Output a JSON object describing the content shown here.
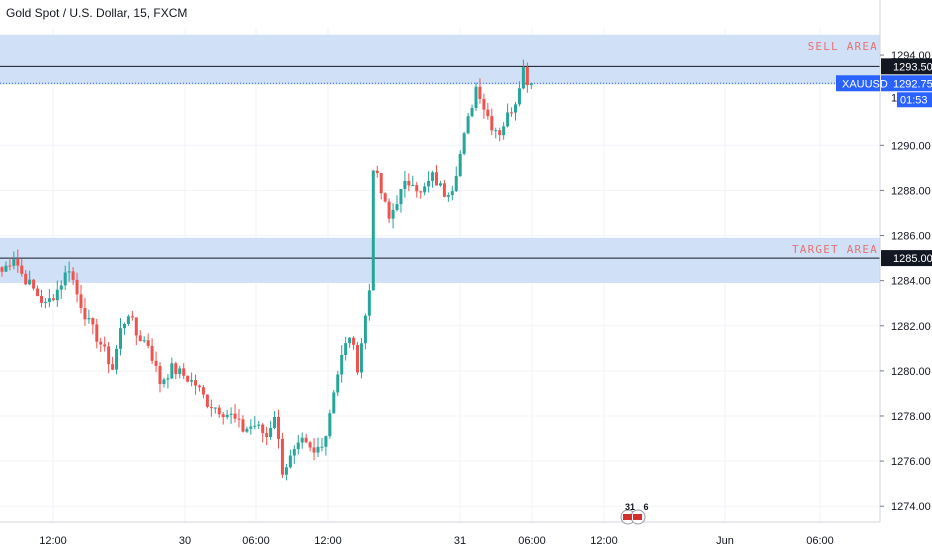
{
  "header": {
    "symbol_title": "Gold Spot / U.S. Dollar, 15, FXCM"
  },
  "colors": {
    "up": "#26a69a",
    "down": "#ef5350",
    "zone_fill": "#cfe0f7",
    "zone_text": "#e57373",
    "axis_text": "#131722",
    "grid": "#f0f3fa",
    "price_badge": "#2962ff",
    "line_badge": "#131722"
  },
  "chart_data": {
    "type": "candlestick",
    "instrument": "XAUUSD",
    "timeframe": "15",
    "ylim": [
      1273.3,
      1295.2
    ],
    "y_ticks": [
      "1274.00",
      "1276.00",
      "1278.00",
      "1280.00",
      "1282.00",
      "1284.00",
      "1286.00",
      "1288.00",
      "1290.00",
      "1294.00"
    ],
    "x_ticks": [
      "12:00",
      "30",
      "06:00",
      "12:00",
      "31",
      "06:00",
      "12:00",
      "Jun",
      "06:00"
    ],
    "zones": [
      {
        "label": "SELL AREA",
        "low": 1292.7,
        "high": 1294.9
      },
      {
        "label": "TARGET AREA",
        "low": 1283.9,
        "high": 1285.9
      }
    ],
    "levels": [
      {
        "value": 1293.5,
        "label": "1293.50"
      },
      {
        "value": 1285.0,
        "label": "1285.00"
      }
    ],
    "last_price": {
      "symbol": "XAUUSD",
      "value": 1292.75,
      "label": "1292.75",
      "countdown": "01:53"
    },
    "hidden_tick_fragment": "12",
    "event_marker": {
      "date": "31",
      "count": "6"
    },
    "anchors": [
      [
        0,
        1284.4
      ],
      [
        3,
        1285.1
      ],
      [
        5,
        1284.3
      ],
      [
        8,
        1283.6
      ],
      [
        11,
        1282.9
      ],
      [
        14,
        1283.6
      ],
      [
        17,
        1284.6
      ],
      [
        19,
        1283.4
      ],
      [
        22,
        1282.1
      ],
      [
        25,
        1281.2
      ],
      [
        28,
        1280.1
      ],
      [
        30,
        1281.8
      ],
      [
        32,
        1282.6
      ],
      [
        34,
        1281.6
      ],
      [
        37,
        1281.2
      ],
      [
        40,
        1279.5
      ],
      [
        43,
        1280.1
      ],
      [
        46,
        1279.8
      ],
      [
        49,
        1279.4
      ],
      [
        52,
        1278.6
      ],
      [
        55,
        1278.3
      ],
      [
        58,
        1278.0
      ],
      [
        61,
        1277.4
      ],
      [
        64,
        1277.6
      ],
      [
        67,
        1277.1
      ],
      [
        69,
        1278.1
      ],
      [
        71,
        1275.6
      ],
      [
        73,
        1276.1
      ],
      [
        76,
        1276.8
      ],
      [
        79,
        1276.3
      ],
      [
        82,
        1277.2
      ],
      [
        84,
        1279.2
      ],
      [
        86,
        1280.6
      ],
      [
        88,
        1281.6
      ],
      [
        90,
        1280.2
      ],
      [
        92,
        1282.4
      ],
      [
        93,
        1283.6
      ],
      [
        94,
        1289.1
      ],
      [
        96,
        1287.9
      ],
      [
        98,
        1286.7
      ],
      [
        100,
        1287.6
      ],
      [
        102,
        1288.2
      ],
      [
        104,
        1288.5
      ],
      [
        106,
        1287.8
      ],
      [
        109,
        1288.6
      ],
      [
        112,
        1287.9
      ],
      [
        114,
        1288.2
      ],
      [
        116,
        1289.6
      ],
      [
        118,
        1291.1
      ],
      [
        120,
        1292.6
      ],
      [
        121,
        1292.3
      ],
      [
        122,
        1291.7
      ],
      [
        124,
        1290.9
      ],
      [
        126,
        1290.6
      ],
      [
        128,
        1291.3
      ],
      [
        130,
        1292.0
      ],
      [
        131,
        1292.8
      ],
      [
        132,
        1293.4
      ],
      [
        133,
        1292.9
      ],
      [
        134,
        1292.75
      ]
    ]
  }
}
